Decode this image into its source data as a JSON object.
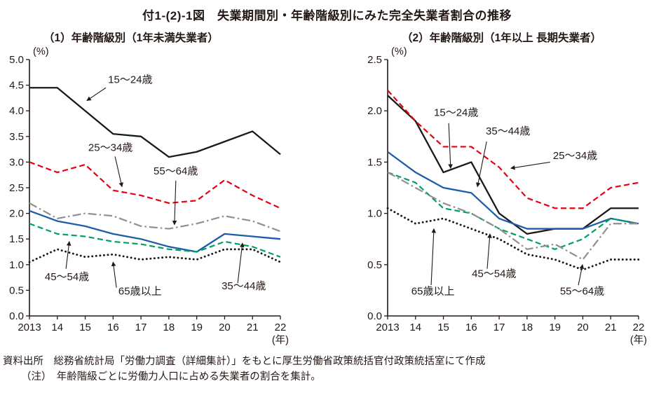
{
  "page": {
    "title": "付1-(2)-1図　失業期間別・年齢階級別にみた完全失業者割合の推移",
    "source": "資料出所　総務省統計局「労働力調査（詳細集計）」をもとに厚生労働省政策統括官付政策統括室にて作成",
    "note": "（注）　年齢階級ごとに労働力人口に占める失業者の割合を集計。"
  },
  "chart_data": [
    {
      "type": "line",
      "title": "（1）年齢階級別（1年未満失業者）",
      "ylabel": "(%)",
      "xlabel": "(年)",
      "x": [
        "2013",
        "14",
        "15",
        "16",
        "17",
        "18",
        "19",
        "20",
        "21",
        "22"
      ],
      "ylim": [
        0,
        5.0
      ],
      "ytick_step": 0.5,
      "grid": false,
      "legend": "annotated-labels",
      "series": [
        {
          "key": "15-24",
          "name": "15～24歳",
          "color": "#1a1a1a",
          "style": "solid",
          "values": [
            4.45,
            4.45,
            4.0,
            3.55,
            3.5,
            3.1,
            3.2,
            3.4,
            3.6,
            3.15
          ]
        },
        {
          "key": "25-34",
          "name": "25～34歳",
          "color": "#e60012",
          "style": "dashed",
          "values": [
            3.0,
            2.8,
            2.95,
            2.45,
            2.35,
            2.2,
            2.25,
            2.65,
            2.35,
            2.1
          ]
        },
        {
          "key": "35-44",
          "name": "35～44歳",
          "color": "#1c5caa",
          "style": "solid",
          "values": [
            2.05,
            1.85,
            1.75,
            1.6,
            1.5,
            1.35,
            1.25,
            1.6,
            1.55,
            1.5
          ]
        },
        {
          "key": "45-54",
          "name": "45～54歳",
          "color": "#00a05e",
          "style": "dashed",
          "values": [
            1.8,
            1.6,
            1.55,
            1.45,
            1.4,
            1.3,
            1.25,
            1.45,
            1.35,
            1.15
          ]
        },
        {
          "key": "55-64",
          "name": "55～64歳",
          "color": "#8f9091",
          "style": "dashdot",
          "values": [
            2.2,
            1.9,
            2.0,
            1.95,
            1.75,
            1.7,
            1.8,
            1.95,
            1.85,
            1.65
          ]
        },
        {
          "key": "65-over",
          "name": "65歳以上",
          "color": "#1a1a1a",
          "style": "dotted",
          "values": [
            1.05,
            1.3,
            1.15,
            1.2,
            1.1,
            1.15,
            1.1,
            1.3,
            1.3,
            1.05
          ]
        }
      ],
      "annotations": [
        {
          "key": "15-24",
          "text": "15～24歳",
          "tx": 2.82,
          "ty": 4.54,
          "sx": 2.74,
          "sy": 4.45,
          "px": 2.06,
          "py": 4.2
        },
        {
          "key": "25-34",
          "text": "25～34歳",
          "tx": 2.11,
          "ty": 3.22,
          "sx": 3.07,
          "sy": 3.11,
          "px": 3.32,
          "py": 2.52
        },
        {
          "key": "55-64",
          "text": "55～64歳",
          "tx": 4.45,
          "ty": 2.76,
          "sx": 5.25,
          "sy": 2.64,
          "px": 5.2,
          "py": 1.78
        },
        {
          "key": "45-54",
          "text": "45～54歳",
          "tx": 0.55,
          "ty": 0.7,
          "sx": 1.31,
          "sy": 0.92,
          "px": 1.43,
          "py": 1.45
        },
        {
          "key": "65-over",
          "text": "65歳以上",
          "tx": 3.19,
          "ty": 0.42,
          "sx": 3.12,
          "sy": 0.55,
          "px": 3.0,
          "py": 1.05
        },
        {
          "key": "35-44",
          "text": "35～44歳",
          "tx": 6.89,
          "ty": 0.52,
          "sx": 7.47,
          "sy": 0.64,
          "px": 7.64,
          "py": 1.42
        }
      ]
    },
    {
      "type": "line",
      "title": "（2）年齢階級別（1年以上 長期失業者）",
      "ylabel": "(%)",
      "xlabel": "(年)",
      "x": [
        "2013",
        "14",
        "15",
        "16",
        "17",
        "18",
        "19",
        "20",
        "21",
        "22"
      ],
      "ylim": [
        0,
        2.5
      ],
      "ytick_step": 0.5,
      "grid": false,
      "legend": "annotated-labels",
      "series": [
        {
          "key": "15-24",
          "name": "15～24歳",
          "color": "#1a1a1a",
          "style": "solid",
          "values": [
            2.15,
            1.9,
            1.4,
            1.5,
            1.0,
            0.8,
            0.85,
            0.85,
            1.05,
            1.05
          ]
        },
        {
          "key": "25-34",
          "name": "25～34歳",
          "color": "#e60012",
          "style": "dashed",
          "values": [
            2.2,
            1.9,
            1.65,
            1.65,
            1.45,
            1.15,
            1.05,
            1.05,
            1.25,
            1.3
          ]
        },
        {
          "key": "35-44",
          "name": "35～44歳",
          "color": "#1c5caa",
          "style": "solid",
          "values": [
            1.6,
            1.4,
            1.25,
            1.2,
            0.95,
            0.85,
            0.85,
            0.85,
            0.95,
            0.9
          ]
        },
        {
          "key": "45-54",
          "name": "45～54歳",
          "color": "#00a05e",
          "style": "dashed",
          "values": [
            1.4,
            1.3,
            1.05,
            1.0,
            0.85,
            0.75,
            0.65,
            0.75,
            0.95,
            0.9
          ]
        },
        {
          "key": "55-64",
          "name": "55～64歳",
          "color": "#8f9091",
          "style": "dashdot",
          "values": [
            1.4,
            1.25,
            1.1,
            1.0,
            0.85,
            0.65,
            0.7,
            0.55,
            0.9,
            0.9
          ]
        },
        {
          "key": "65-over",
          "name": "65歳以上",
          "color": "#1a1a1a",
          "style": "dotted",
          "values": [
            1.05,
            0.9,
            0.95,
            0.85,
            0.75,
            0.6,
            0.55,
            0.45,
            0.55,
            0.55
          ]
        }
      ],
      "annotations": [
        {
          "key": "15-24",
          "text": "15～24歳",
          "tx": 1.66,
          "ty": 1.95,
          "sx": 2.19,
          "sy": 1.88,
          "px": 2.26,
          "py": 1.44
        },
        {
          "key": "35-44",
          "text": "35～44歳",
          "tx": 3.52,
          "ty": 1.77,
          "sx": 3.55,
          "sy": 1.7,
          "px": 3.22,
          "py": 1.26
        },
        {
          "key": "25-34",
          "text": "25～34歳",
          "tx": 5.93,
          "ty": 1.53,
          "sx": 5.83,
          "sy": 1.5,
          "px": 4.42,
          "py": 1.44
        },
        {
          "key": "45-54",
          "text": "45～54歳",
          "tx": 3.02,
          "ty": 0.38,
          "sx": 3.57,
          "sy": 0.46,
          "px": 3.67,
          "py": 0.8
        },
        {
          "key": "65-over",
          "text": "65歳以上",
          "tx": 0.85,
          "ty": 0.21,
          "sx": 1.56,
          "sy": 0.3,
          "px": 1.66,
          "py": 0.85
        },
        {
          "key": "55-64",
          "text": "55～64歳",
          "tx": 6.18,
          "ty": 0.21,
          "sx": 6.84,
          "sy": 0.3,
          "px": 6.99,
          "py": 0.5
        }
      ]
    }
  ]
}
